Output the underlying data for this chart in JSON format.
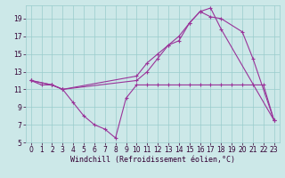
{
  "background_color": "#cce8e8",
  "line_color": "#993399",
  "grid_color": "#99cccc",
  "xlabel": "Windchill (Refroidissement éolien,°C)",
  "xlabel_color": "#330033",
  "xlim": [
    -0.5,
    23.5
  ],
  "ylim": [
    5,
    20.5
  ],
  "xticks": [
    0,
    1,
    2,
    3,
    4,
    5,
    6,
    7,
    8,
    9,
    10,
    11,
    12,
    13,
    14,
    15,
    16,
    17,
    18,
    19,
    20,
    21,
    22,
    23
  ],
  "yticks": [
    5,
    7,
    9,
    11,
    13,
    15,
    17,
    19
  ],
  "tick_fontsize": 5.5,
  "xlabel_fontsize": 6,
  "line1_x": [
    0,
    1,
    2,
    3,
    4,
    5,
    6,
    7,
    8,
    9,
    10,
    11,
    12,
    13,
    14,
    15,
    16,
    17,
    18,
    19,
    20,
    21,
    22,
    23
  ],
  "line1_y": [
    12.0,
    11.5,
    11.5,
    11.0,
    9.5,
    8.0,
    7.0,
    6.5,
    5.5,
    10.0,
    11.5,
    11.5,
    11.5,
    11.5,
    11.5,
    11.5,
    11.5,
    11.5,
    11.5,
    11.5,
    11.5,
    11.5,
    11.5,
    7.5
  ],
  "line2_x": [
    0,
    2,
    3,
    10,
    11,
    12,
    13,
    14,
    15,
    16,
    17,
    18,
    20,
    21,
    23
  ],
  "line2_y": [
    12.0,
    11.5,
    11.0,
    12.0,
    13.0,
    14.5,
    16.0,
    16.5,
    18.5,
    19.8,
    19.2,
    19.0,
    17.5,
    14.5,
    7.5
  ],
  "line3_x": [
    0,
    2,
    3,
    10,
    11,
    12,
    13,
    14,
    15,
    16,
    17,
    18,
    23
  ],
  "line3_y": [
    12.0,
    11.5,
    11.0,
    12.5,
    14.0,
    15.0,
    16.0,
    17.0,
    18.5,
    19.8,
    20.2,
    17.8,
    7.5
  ]
}
